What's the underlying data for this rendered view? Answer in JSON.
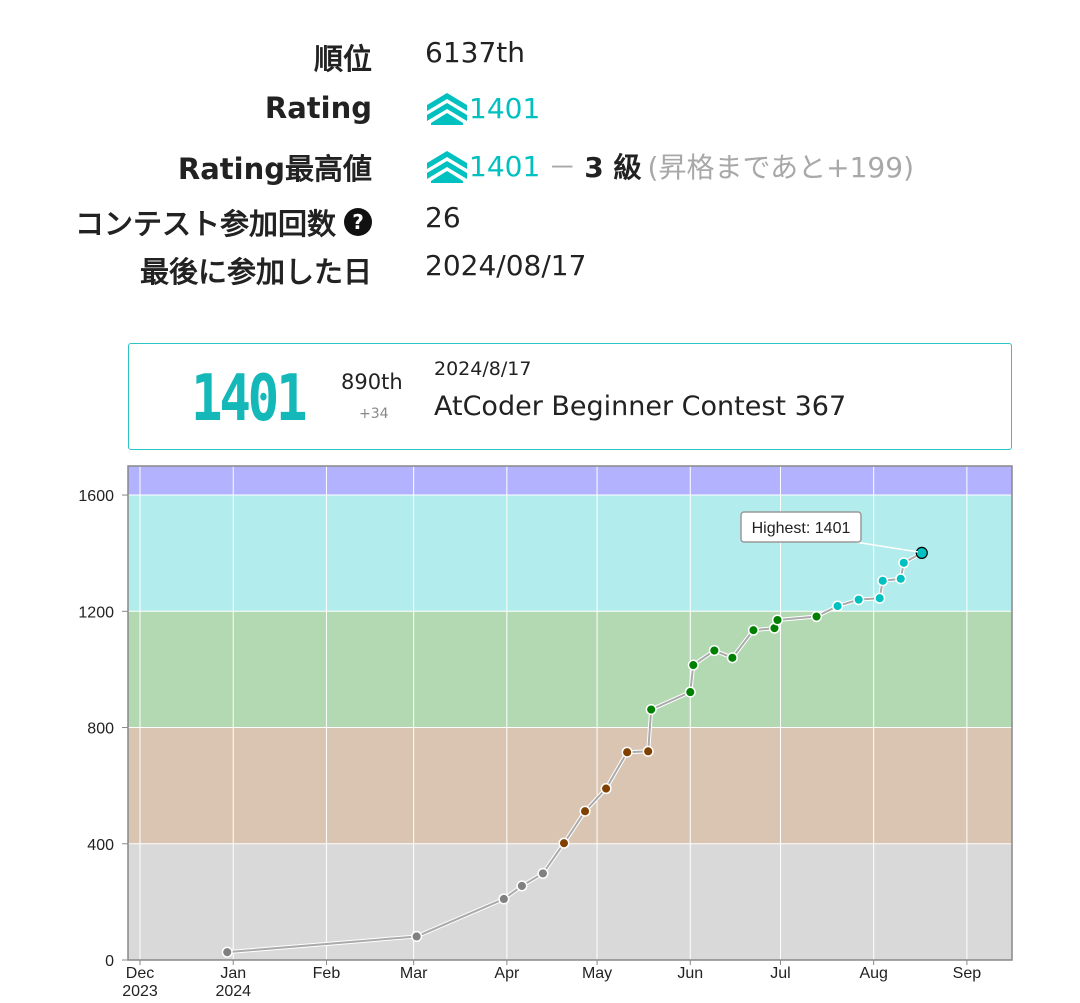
{
  "profile": {
    "rank_label": "順位",
    "rank_value": "6137th",
    "rating_label": "Rating",
    "rating_value": "1401",
    "highest_label": "Rating最高値",
    "highest_value": "1401",
    "highest_sep": "－",
    "kyu": "3 級",
    "promotion_note": "(昇格まであと+199)",
    "contests_label": "コンテスト参加回数",
    "contests_help_icon": "question-circle-icon",
    "contests_value": "26",
    "last_label": "最後に参加した日",
    "last_value": "2024/08/17",
    "rating_color": "#00c0c0"
  },
  "card": {
    "rating": "1401",
    "place": "890th",
    "delta": "+34",
    "date": "2024/8/17",
    "contest": "AtCoder Beginner Contest 367"
  },
  "chart_data": {
    "type": "line",
    "ylim": [
      0,
      1700
    ],
    "yticks": [
      0,
      400,
      800,
      1200,
      1600
    ],
    "xlim": [
      "2023-11-27",
      "2024-09-16"
    ],
    "xticks": [
      {
        "date": "2023-12-01",
        "label": "Dec",
        "sub": "2023"
      },
      {
        "date": "2024-01-01",
        "label": "Jan",
        "sub": "2024"
      },
      {
        "date": "2024-02-01",
        "label": "Feb",
        "sub": ""
      },
      {
        "date": "2024-03-01",
        "label": "Mar",
        "sub": ""
      },
      {
        "date": "2024-04-01",
        "label": "Apr",
        "sub": ""
      },
      {
        "date": "2024-05-01",
        "label": "May",
        "sub": ""
      },
      {
        "date": "2024-06-01",
        "label": "Jun",
        "sub": ""
      },
      {
        "date": "2024-07-01",
        "label": "Jul",
        "sub": ""
      },
      {
        "date": "2024-08-01",
        "label": "Aug",
        "sub": ""
      },
      {
        "date": "2024-09-01",
        "label": "Sep",
        "sub": ""
      }
    ],
    "bands": [
      {
        "from": 0,
        "to": 400,
        "color": "#d9d9d9"
      },
      {
        "from": 400,
        "to": 800,
        "color": "#d9c5b2"
      },
      {
        "from": 800,
        "to": 1200,
        "color": "#b2d9b2"
      },
      {
        "from": 1200,
        "to": 1600,
        "color": "#b2ecec"
      },
      {
        "from": 1600,
        "to": 2000,
        "color": "#b2b2ff"
      }
    ],
    "points": [
      {
        "x": "2023-12-30",
        "y": 27
      },
      {
        "x": "2024-03-02",
        "y": 81
      },
      {
        "x": "2024-03-31",
        "y": 210
      },
      {
        "x": "2024-04-06",
        "y": 255
      },
      {
        "x": "2024-04-13",
        "y": 298
      },
      {
        "x": "2024-04-20",
        "y": 402
      },
      {
        "x": "2024-04-27",
        "y": 512
      },
      {
        "x": "2024-05-04",
        "y": 590
      },
      {
        "x": "2024-05-11",
        "y": 715
      },
      {
        "x": "2024-05-18",
        "y": 718
      },
      {
        "x": "2024-05-19",
        "y": 862
      },
      {
        "x": "2024-06-01",
        "y": 922
      },
      {
        "x": "2024-06-02",
        "y": 1015
      },
      {
        "x": "2024-06-09",
        "y": 1065
      },
      {
        "x": "2024-06-15",
        "y": 1040
      },
      {
        "x": "2024-06-22",
        "y": 1135
      },
      {
        "x": "2024-06-29",
        "y": 1142
      },
      {
        "x": "2024-06-30",
        "y": 1170
      },
      {
        "x": "2024-07-13",
        "y": 1182
      },
      {
        "x": "2024-07-20",
        "y": 1218
      },
      {
        "x": "2024-07-27",
        "y": 1240
      },
      {
        "x": "2024-08-03",
        "y": 1245
      },
      {
        "x": "2024-08-04",
        "y": 1305
      },
      {
        "x": "2024-08-10",
        "y": 1312
      },
      {
        "x": "2024-08-11",
        "y": 1367
      },
      {
        "x": "2024-08-17",
        "y": 1401
      }
    ],
    "highest_label": "Highest: 1401",
    "grid": true
  }
}
